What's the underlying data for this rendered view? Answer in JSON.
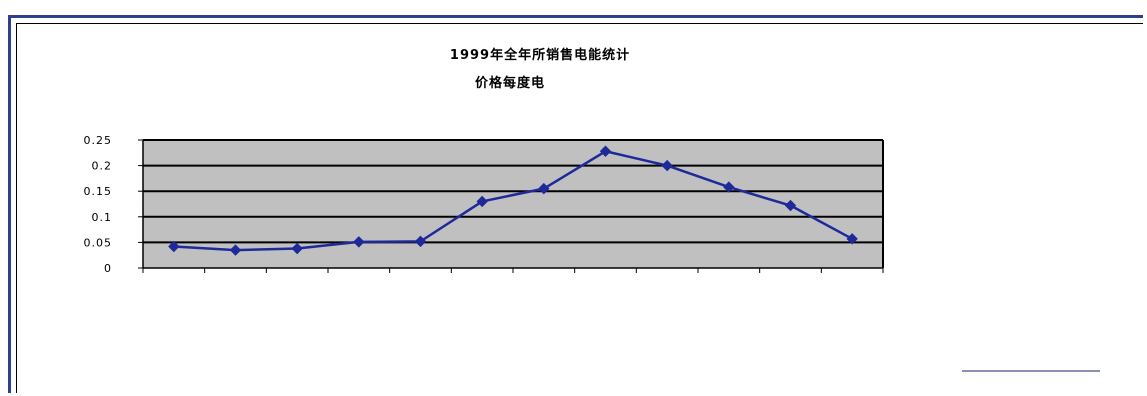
{
  "chart_data": {
    "type": "line",
    "title": "1999年全年所销售电能统计",
    "subtitle": "价格每度电",
    "ylim": [
      0,
      0.25
    ],
    "y_ticks": [
      "0.25",
      "0.2",
      "0.15",
      "0.1",
      "0.05",
      "0"
    ],
    "y_tick_values": [
      0.25,
      0.2,
      0.15,
      0.1,
      0.05,
      0
    ],
    "grid": true,
    "series": [
      {
        "values": [
          0.042,
          0.035,
          0.038,
          0.051,
          0.052,
          0.13,
          0.155,
          0.228,
          0.2,
          0.158,
          0.122,
          0.057
        ]
      }
    ],
    "colors": {
      "plot_bg": "#c0c0c0",
      "line": "#1e2a9a",
      "marker": "#1e2a9a",
      "grid": "#000000"
    }
  }
}
